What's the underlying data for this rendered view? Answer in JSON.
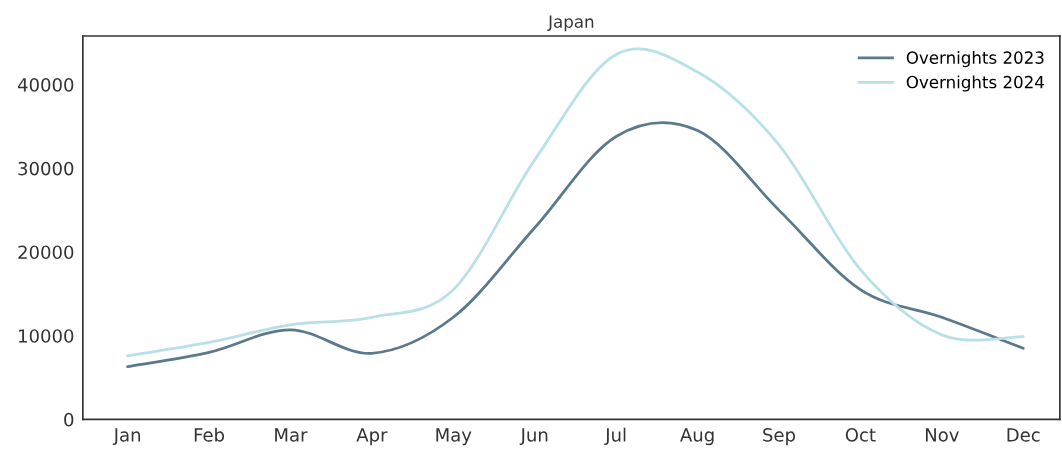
{
  "chart_data": {
    "type": "line",
    "title": "Japan",
    "categories": [
      "Jan",
      "Feb",
      "Mar",
      "Apr",
      "May",
      "Jun",
      "Jul",
      "Aug",
      "Sep",
      "Oct",
      "Nov",
      "Dec"
    ],
    "series": [
      {
        "name": "Overnights 2023",
        "color": "#5a7a8c",
        "values": [
          6300,
          8000,
          10700,
          7900,
          12200,
          22900,
          33800,
          34500,
          25000,
          15500,
          12200,
          8500
        ]
      },
      {
        "name": "Overnights 2024",
        "color": "#b8e0e6",
        "values": [
          7600,
          9200,
          11300,
          12200,
          15500,
          31000,
          43600,
          41500,
          32800,
          17900,
          10100,
          9900
        ]
      }
    ],
    "ylim": [
      0,
      45800
    ],
    "yticks": [
      0,
      10000,
      20000,
      30000,
      40000
    ],
    "grid": false,
    "legend": "top right",
    "marker": "none",
    "line_style": "solid"
  }
}
